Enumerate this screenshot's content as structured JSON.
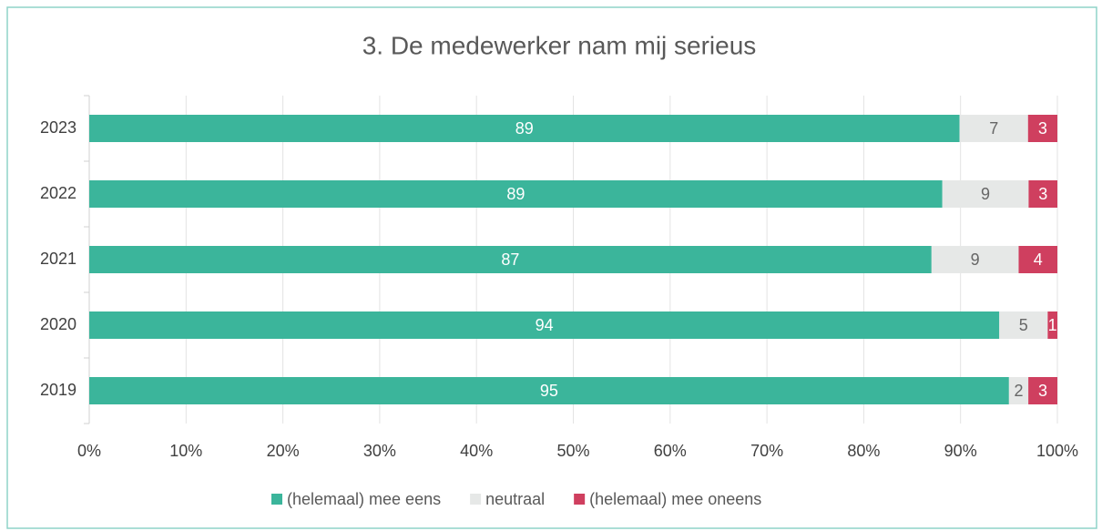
{
  "chart_data": {
    "type": "bar",
    "orientation": "horizontal",
    "stacked": "percent",
    "title": "3. De medewerker nam mij serieus",
    "categories": [
      "2023",
      "2022",
      "2021",
      "2020",
      "2019"
    ],
    "series": [
      {
        "name": "(helemaal) mee eens",
        "color": "#3bb59b",
        "label_color": "#ffffff",
        "values": [
          89,
          89,
          87,
          94,
          95
        ]
      },
      {
        "name": "neutraal",
        "color": "#e6e8e7",
        "label_color": "#666666",
        "values": [
          7,
          9,
          9,
          5,
          2
        ]
      },
      {
        "name": "(helemaal) mee oneens",
        "color": "#cf3f5f",
        "label_color": "#ffffff",
        "values": [
          3,
          3,
          4,
          1,
          3
        ]
      }
    ],
    "xlim": [
      0,
      100
    ],
    "xticks": [
      {
        "value": 0,
        "label": "0%"
      },
      {
        "value": 10,
        "label": "10%"
      },
      {
        "value": 20,
        "label": "20%"
      },
      {
        "value": 30,
        "label": "30%"
      },
      {
        "value": 40,
        "label": "40%"
      },
      {
        "value": 50,
        "label": "50%"
      },
      {
        "value": 60,
        "label": "60%"
      },
      {
        "value": 70,
        "label": "70%"
      },
      {
        "value": 80,
        "label": "80%"
      },
      {
        "value": 90,
        "label": "90%"
      },
      {
        "value": 100,
        "label": "100%"
      }
    ],
    "grid": true,
    "legend": "bottom"
  }
}
